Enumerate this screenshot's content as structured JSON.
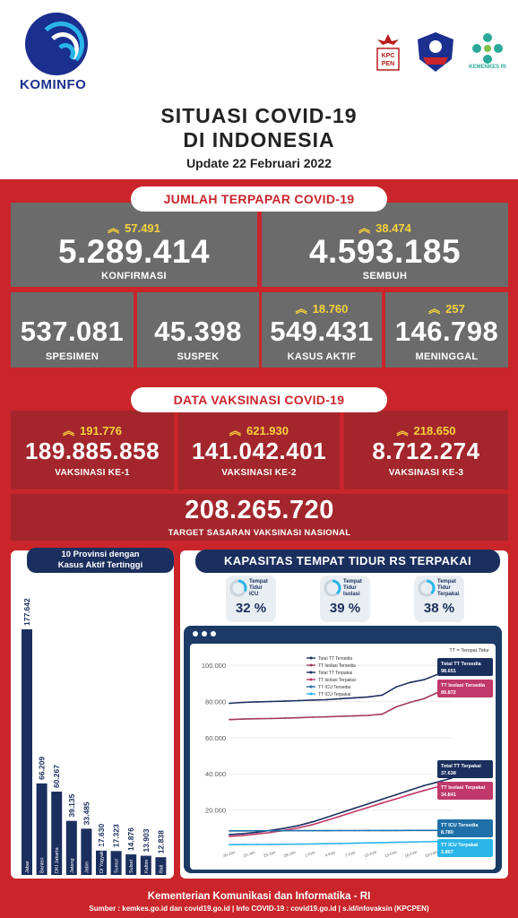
{
  "brand": {
    "name": "KOMINFO"
  },
  "partners": {
    "kpcpen": "KPC PEN",
    "kemkes": "KEMENKES RI"
  },
  "title": {
    "line1": "SITUASI COVID-19",
    "line2": "DI INDONESIA",
    "update": "Update 22 Februari 2022"
  },
  "terpapar": {
    "header": "JUMLAH TERPAPAR COVID-19",
    "konfirmasi": {
      "inc": "57.491",
      "value": "5.289.414",
      "label": "KONFIRMASI"
    },
    "sembuh": {
      "inc": "38.474",
      "value": "4.593.185",
      "label": "SEMBUH"
    },
    "spesimen": {
      "value": "537.081",
      "label": "SPESIMEN"
    },
    "suspek": {
      "value": "45.398",
      "label": "SUSPEK"
    },
    "aktif": {
      "inc": "18.760",
      "value": "549.431",
      "label": "KASUS AKTIF"
    },
    "meninggal": {
      "inc": "257",
      "value": "146.798",
      "label": "MENINGGAL"
    }
  },
  "vaksinasi": {
    "header": "DATA VAKSINASI COVID-19",
    "v1": {
      "inc": "191.776",
      "value": "189.885.858",
      "label": "VAKSINASI KE-1"
    },
    "v2": {
      "inc": "621.930",
      "value": "141.042.401",
      "label": "VAKSINASI KE-2"
    },
    "v3": {
      "inc": "218.650",
      "value": "8.712.274",
      "label": "VAKSINASI KE-3"
    },
    "target": {
      "value": "208.265.720",
      "label": "TARGET SASARAN VAKSINASI NASIONAL"
    }
  },
  "provinsi": {
    "header1": "10 Provinsi dengan",
    "header2": "Kasus Aktif Tertinggi"
  },
  "kapasitas": {
    "header": "KAPASITAS TEMPAT TIDUR RS TERPAKAI",
    "icu": {
      "label1": "Tempat",
      "label2": "Tidur",
      "label3": "ICU",
      "pct": "32 %",
      "fill": 0.32
    },
    "isolasi": {
      "label1": "Tempat",
      "label2": "Tidur",
      "label3": "Isolasi",
      "pct": "39 %",
      "fill": 0.39
    },
    "total": {
      "label1": "Tempat",
      "label2": "Tidur",
      "label3": "Terpakai",
      "pct": "38 %",
      "fill": 0.38
    }
  },
  "chart_data": [
    {
      "type": "bar",
      "categories": [
        "Jabar",
        "Banten",
        "DKI Jakarta",
        "Jateng",
        "Jatim",
        "DI Yogyakarta",
        "Sumut",
        "Sulsel",
        "Kaltim",
        "Bali"
      ],
      "values": [
        177642,
        66209,
        60267,
        39135,
        33485,
        17630,
        17323,
        14876,
        13903,
        12838
      ],
      "value_labels": [
        "177.642",
        "66.209",
        "60.267",
        "39.135",
        "33.485",
        "17.630",
        "17.323",
        "14.876",
        "13.903",
        "12.838"
      ],
      "colors": {
        "bar": "#1b2f5e"
      }
    },
    {
      "type": "line",
      "unit_label": "TT = Tempat Tidur",
      "ytick_labels": [
        "100.000",
        "80.000",
        "60.000",
        "40.000",
        "20.000"
      ],
      "yticks": [
        100000,
        80000,
        60000,
        40000,
        20000
      ],
      "ylim": [
        0,
        105000
      ],
      "x": [
        "20-Jan",
        "22-Jan",
        "24-Jan",
        "26-Jan",
        "28-Jan",
        "30-Jan",
        "1-Feb",
        "3-Feb",
        "5-Feb",
        "7-Feb",
        "9-Feb",
        "11-Feb",
        "13-Feb",
        "15-Feb",
        "17-Feb",
        "19-Feb",
        "21-Feb"
      ],
      "xtick_labels": [
        "20-Jan",
        "22-Jan",
        "25-Jan",
        "28-Jan",
        "1-Feb",
        "4-Feb",
        "7-Feb",
        "10-Feb",
        "13-Feb",
        "16-Feb",
        "19-Feb",
        "22-Feb"
      ],
      "series": [
        {
          "name": "Total TT Tersedia",
          "color": "#1b2f5e",
          "values": [
            79000,
            79500,
            79800,
            80000,
            80200,
            80500,
            80800,
            81000,
            81500,
            82000,
            82500,
            83500,
            88000,
            90500,
            92000,
            95000,
            98651
          ]
        },
        {
          "name": "TT Isolasi Tersedia",
          "color": "#a03a5a",
          "values": [
            70000,
            70300,
            70500,
            70600,
            70800,
            71000,
            71300,
            71500,
            71800,
            72000,
            72300,
            73000,
            77000,
            79500,
            81500,
            85000,
            89872
          ]
        },
        {
          "name": "Total TT Terpakai",
          "color": "#1b2f5e",
          "values": [
            6500,
            7000,
            7800,
            8800,
            10000,
            11500,
            13500,
            16000,
            18500,
            21000,
            23500,
            26000,
            28500,
            31000,
            33500,
            35500,
            37638
          ]
        },
        {
          "name": "TT Isolasi Terpakai",
          "color": "#c0396a",
          "values": [
            5500,
            6000,
            6800,
            7700,
            8800,
            10200,
            12000,
            14300,
            16700,
            19100,
            21500,
            23900,
            26200,
            28600,
            30800,
            32900,
            34841
          ]
        },
        {
          "name": "TT ICU Tersedia",
          "color": "#1f6fa8",
          "values": [
            8500,
            8500,
            8550,
            8550,
            8600,
            8600,
            8620,
            8640,
            8660,
            8680,
            8700,
            8720,
            8740,
            8750,
            8760,
            8770,
            8780
          ]
        },
        {
          "name": "TT ICU Terpakai",
          "color": "#2ab5e8",
          "values": [
            900,
            950,
            1000,
            1050,
            1120,
            1200,
            1300,
            1420,
            1550,
            1700,
            1860,
            2020,
            2180,
            2340,
            2500,
            2650,
            2807
          ]
        }
      ],
      "end_labels": [
        {
          "title": "Total TT Tersedia",
          "value": "98.651",
          "color": "#1b2f5e"
        },
        {
          "title": "TT Isolasi Tersedia",
          "value": "89.872",
          "color": "#c0396a"
        },
        {
          "title": "Total TT Terpakai",
          "value": "37.638",
          "color": "#1b2f5e"
        },
        {
          "title": "TT Isolasi Terpakai",
          "value": "34.841",
          "color": "#c0396a"
        },
        {
          "title": "TT ICU Tersedia",
          "value": "8.780",
          "color": "#1f6fa8"
        },
        {
          "title": "TT ICU Terpakai",
          "value": "2.807",
          "color": "#2ab5e8"
        }
      ]
    }
  ],
  "footer": {
    "line1": "Kementerian Komunikasi dan Informatika - RI",
    "line2": "Sumber : kemkes.go.id dan covid19.go.id | Info COVID-19 : covid19.go.id | s.id/infovaksin (KPCPEN)"
  }
}
